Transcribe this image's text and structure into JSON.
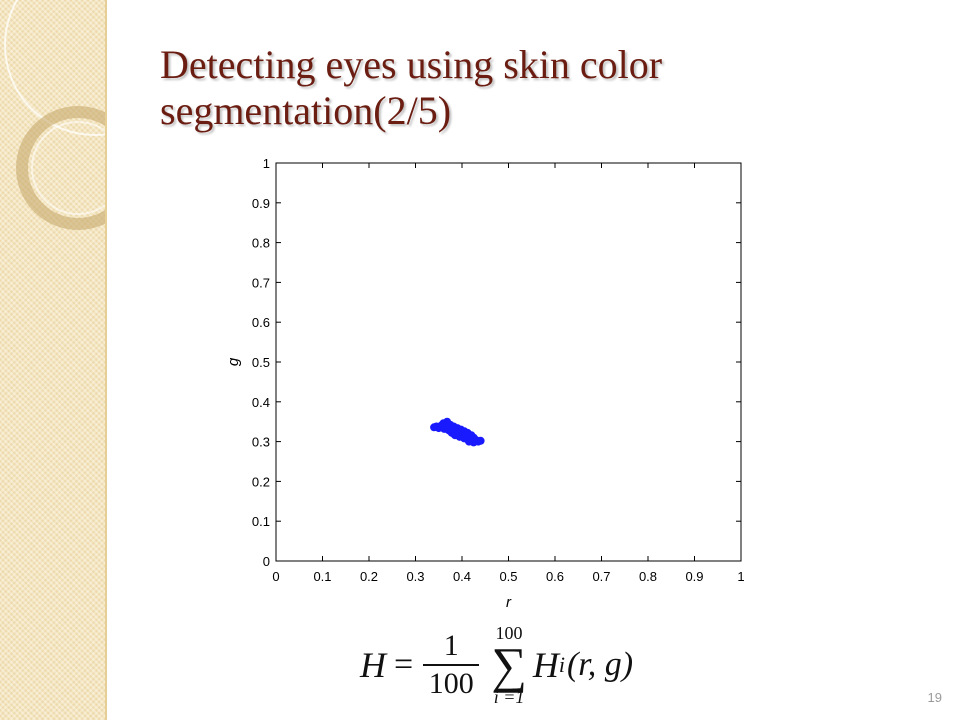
{
  "slide": {
    "title": "Detecting eyes using skin color segmentation(2/5)",
    "page_number": "19"
  },
  "chart_data": {
    "type": "scatter",
    "title": "",
    "xlabel": "r",
    "ylabel": "g",
    "xlim": [
      0,
      1
    ],
    "ylim": [
      0,
      1
    ],
    "x_ticks": [
      "0",
      "0.1",
      "0.2",
      "0.3",
      "0.4",
      "0.5",
      "0.6",
      "0.7",
      "0.8",
      "0.9",
      "1"
    ],
    "y_ticks": [
      "0",
      "0.1",
      "0.2",
      "0.3",
      "0.4",
      "0.5",
      "0.6",
      "0.7",
      "0.8",
      "0.9",
      "1"
    ],
    "grid": false,
    "marker_color": "#1a1aff",
    "series": [
      {
        "x": [
          0.34,
          0.345,
          0.35,
          0.355,
          0.36,
          0.362,
          0.365,
          0.368,
          0.37,
          0.372,
          0.375,
          0.378,
          0.38,
          0.382,
          0.385,
          0.388,
          0.39,
          0.392,
          0.395,
          0.398,
          0.4,
          0.402,
          0.405,
          0.408,
          0.41,
          0.412,
          0.415,
          0.418,
          0.42,
          0.425,
          0.43,
          0.435,
          0.44,
          0.36,
          0.368,
          0.372,
          0.378,
          0.385,
          0.395,
          0.405,
          0.415,
          0.425,
          0.37,
          0.39,
          0.41
        ],
        "y": [
          0.336,
          0.338,
          0.334,
          0.34,
          0.346,
          0.332,
          0.338,
          0.35,
          0.336,
          0.328,
          0.342,
          0.334,
          0.326,
          0.338,
          0.33,
          0.322,
          0.334,
          0.326,
          0.318,
          0.33,
          0.322,
          0.314,
          0.326,
          0.318,
          0.31,
          0.322,
          0.314,
          0.306,
          0.316,
          0.31,
          0.304,
          0.3,
          0.302,
          0.342,
          0.344,
          0.34,
          0.322,
          0.316,
          0.312,
          0.308,
          0.3,
          0.298,
          0.33,
          0.328,
          0.32
        ]
      }
    ]
  },
  "formula": {
    "lhs": "H",
    "equals": "=",
    "frac_num": "1",
    "frac_den": "100",
    "sum_upper": "100",
    "sum_lower": "i =1",
    "sigma": "∑",
    "term": "H",
    "term_sub": "i",
    "term_args": "(r, g)"
  }
}
